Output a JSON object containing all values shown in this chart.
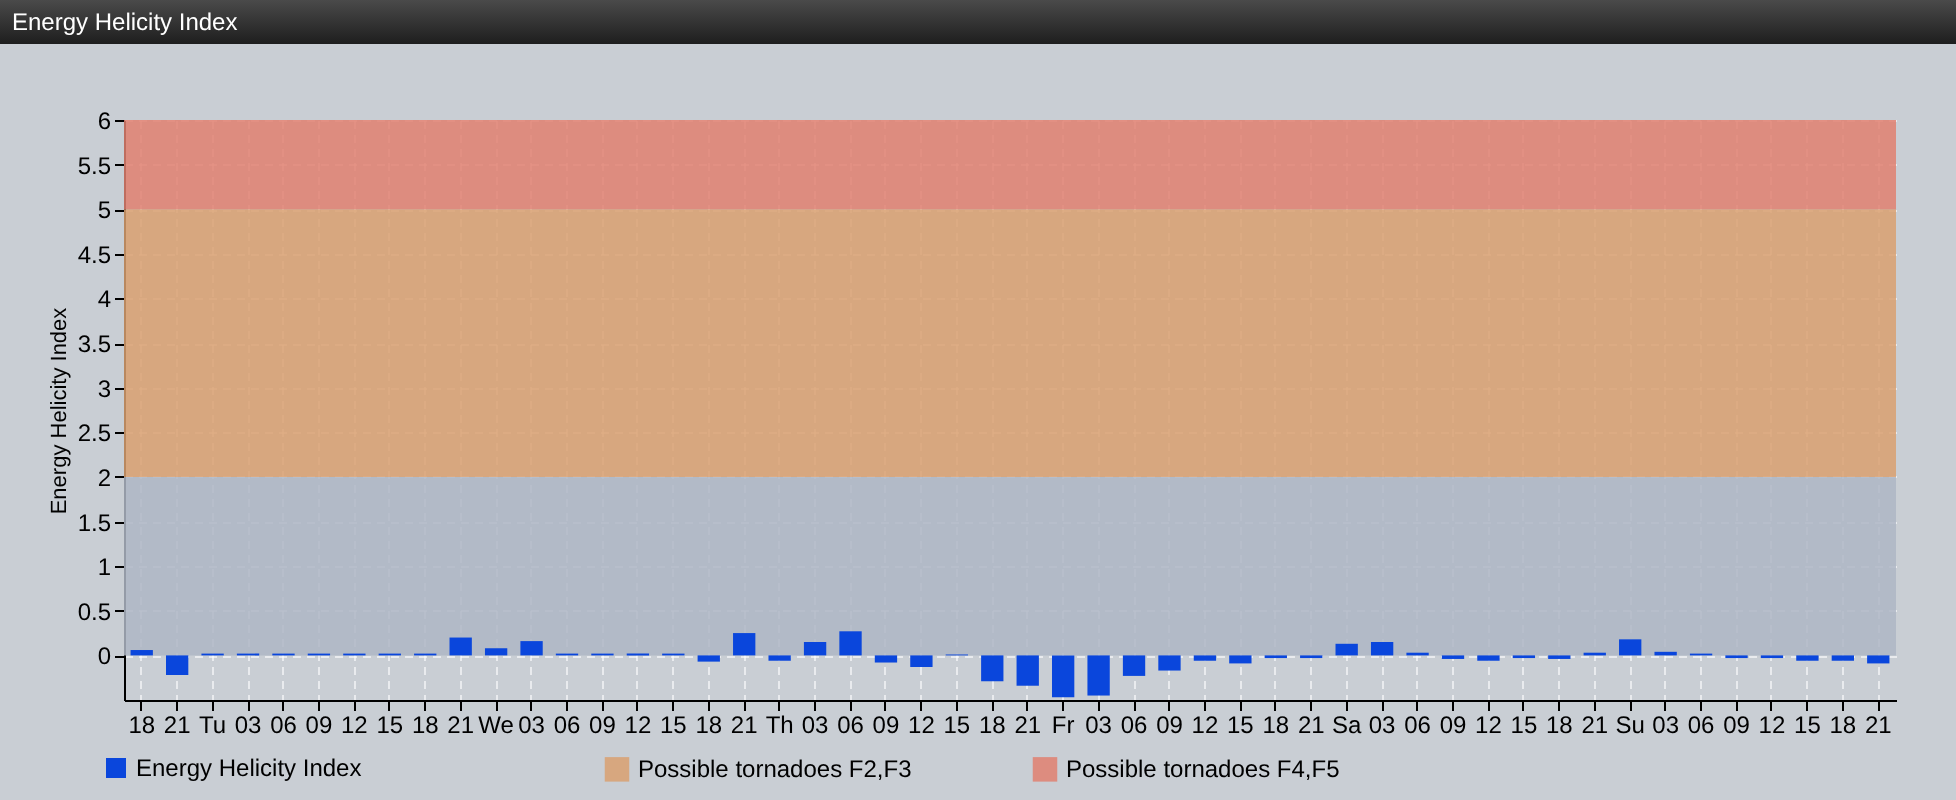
{
  "chart_data": {
    "type": "bar",
    "title": "Energy Helicity Index",
    "ylabel": "Energy Helicity Index",
    "categories": [
      "18",
      "21",
      "Tu",
      "03",
      "06",
      "09",
      "12",
      "15",
      "18",
      "21",
      "We",
      "03",
      "06",
      "09",
      "12",
      "15",
      "18",
      "21",
      "Th",
      "03",
      "06",
      "09",
      "12",
      "15",
      "18",
      "21",
      "Fr",
      "03",
      "06",
      "09",
      "12",
      "15",
      "18",
      "21",
      "Sa",
      "03",
      "06",
      "09",
      "12",
      "15",
      "18",
      "21",
      "Su",
      "03",
      "06",
      "09",
      "12",
      "15",
      "18",
      "21"
    ],
    "series": [
      {
        "name": "Energy Helicity Index",
        "color": "#0a46dc",
        "values": [
          0.06,
          -0.22,
          0.02,
          0.02,
          0.02,
          0.02,
          0.02,
          0.02,
          0.02,
          0.2,
          0.08,
          0.16,
          0.02,
          0.02,
          0.02,
          0.02,
          -0.07,
          0.25,
          -0.06,
          0.15,
          0.27,
          -0.08,
          -0.13,
          0.01,
          -0.29,
          -0.34,
          -0.47,
          -0.45,
          -0.23,
          -0.17,
          -0.06,
          -0.09,
          -0.03,
          -0.03,
          0.13,
          0.15,
          0.03,
          -0.04,
          -0.06,
          -0.03,
          -0.04,
          0.03,
          0.18,
          0.04,
          0.02,
          -0.03,
          -0.03,
          -0.06,
          -0.06,
          -0.09
        ]
      }
    ],
    "ylim": [
      -0.5,
      6
    ],
    "yticks": [
      0,
      0.5,
      1,
      1.5,
      2,
      2.5,
      3,
      3.5,
      4,
      4.5,
      5,
      5.5,
      6
    ],
    "bands": [
      {
        "axis": "y",
        "from": 0,
        "to": 2,
        "label": null,
        "color": "#aeb6c4"
      },
      {
        "axis": "y",
        "from": 2,
        "to": 5,
        "label": "Possible tornadoes F2,F3",
        "color": "#d9a070"
      },
      {
        "axis": "y",
        "from": 5,
        "to": 6,
        "label": "Possible tornadoes F4,F5",
        "color": "#e08070"
      }
    ],
    "grid": true,
    "legend": "bottom left"
  }
}
